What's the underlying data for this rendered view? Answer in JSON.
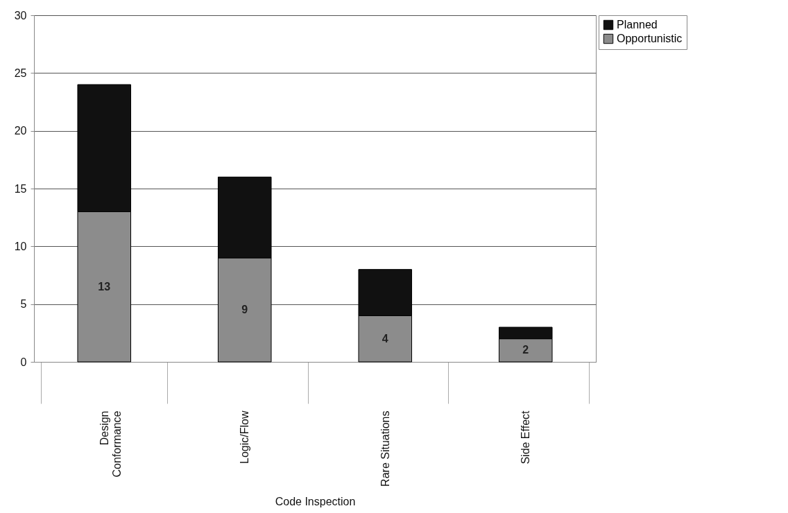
{
  "chart_data": {
    "type": "bar",
    "xlabel": "Code Inspection",
    "categories": [
      "Design Conformance",
      "Logic/Flow",
      "Rare Situations",
      "Side Effect"
    ],
    "stacked": true,
    "series": [
      {
        "name": "Opportunistic",
        "color": "#8c8c8c",
        "values": [
          13,
          9,
          4,
          2
        ],
        "value_labels": [
          "13",
          "9",
          "4",
          "2"
        ]
      },
      {
        "name": "Planned",
        "color": "#111111",
        "values": [
          11,
          7,
          4,
          1
        ]
      }
    ],
    "ylim": [
      0,
      30
    ],
    "yticks": [
      0,
      5,
      10,
      15,
      20,
      25,
      30
    ],
    "grid": "y",
    "legend": "right"
  }
}
